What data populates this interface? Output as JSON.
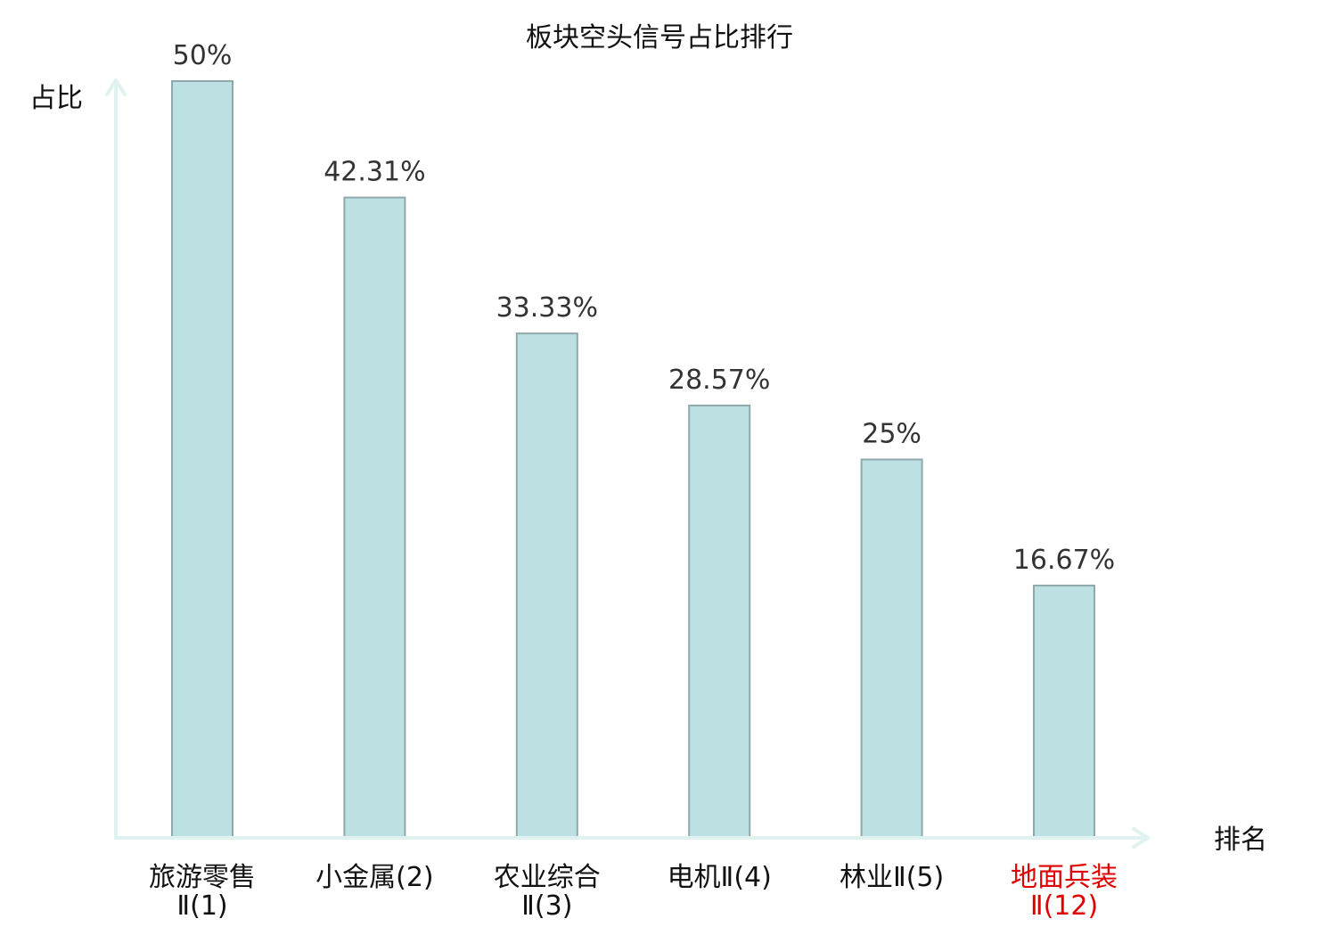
{
  "chart_data": {
    "type": "bar",
    "title": "板块空头信号占比排行",
    "ylabel": "占比",
    "xlabel": "排名",
    "ylim": [
      0,
      50
    ],
    "categories": [
      {
        "lines": [
          "旅游零售",
          "Ⅱ(1)"
        ],
        "highlight": false
      },
      {
        "lines": [
          "小金属(2)"
        ],
        "highlight": false
      },
      {
        "lines": [
          "农业综合",
          "Ⅱ(3)"
        ],
        "highlight": false
      },
      {
        "lines": [
          "电机Ⅱ(4)"
        ],
        "highlight": false
      },
      {
        "lines": [
          "林业Ⅱ(5)"
        ],
        "highlight": false
      },
      {
        "lines": [
          "地面兵装",
          "Ⅱ(12)"
        ],
        "highlight": true
      }
    ],
    "values": [
      50,
      42.31,
      33.33,
      28.57,
      25,
      16.67
    ],
    "value_labels": [
      "50%",
      "42.31%",
      "33.33%",
      "28.57%",
      "25%",
      "16.67%"
    ],
    "colors": {
      "bar_fill": "#bde0e3",
      "bar_stroke": "#8fa9ab",
      "axis": "#e0f2f0",
      "highlight_label": "#e00000"
    }
  }
}
